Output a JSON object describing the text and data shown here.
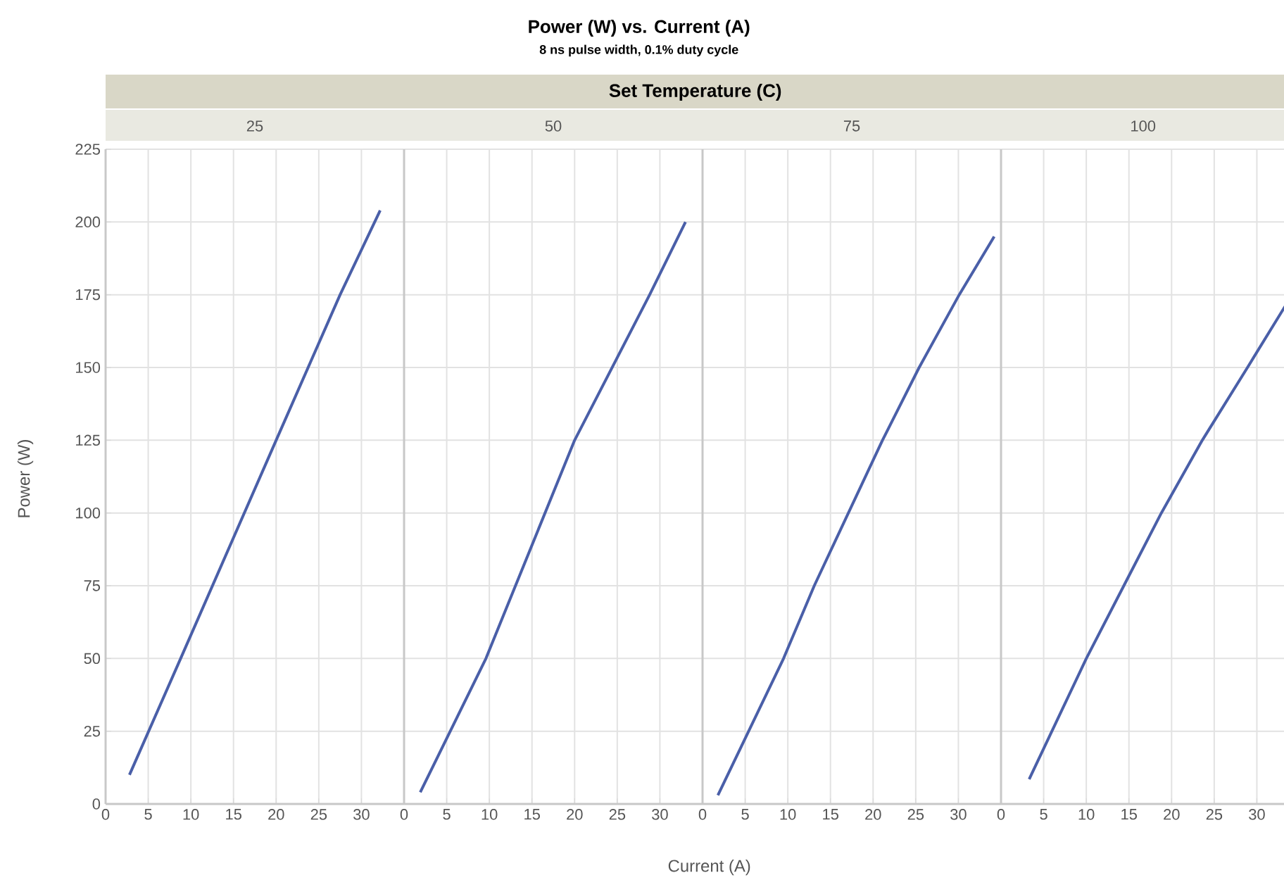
{
  "chart_data": [
    {
      "type": "line",
      "subtitle": "25",
      "ylabel": "Power (W)",
      "color": "#4a5fa8",
      "x": [
        2.8,
        8.8,
        20.0,
        27.5,
        32.2
      ],
      "values": [
        10,
        50,
        125,
        175,
        204
      ],
      "xlim": [
        0,
        35
      ],
      "ylim": [
        0,
        225
      ],
      "xticks": [
        0,
        5,
        10,
        15,
        20,
        25,
        30
      ],
      "yticks": [
        0,
        25,
        50,
        75,
        100,
        125,
        150,
        175,
        200,
        225
      ],
      "grid": true
    },
    {
      "type": "line",
      "title": "Power (W) vs. Current (A)",
      "annotations": [
        "8 ns pulse width, 0.1% duty cycle",
        "Set Temperature (C)"
      ],
      "subtitle": "50",
      "xlabel": "Current (A)",
      "color": "#4a5fa8",
      "x": [
        1.9,
        9.6,
        20.0,
        28.8,
        33.0
      ],
      "values": [
        4,
        50,
        125,
        175,
        200
      ],
      "xlim": [
        0,
        35
      ],
      "ylim": [
        0,
        225
      ],
      "xticks": [
        0,
        5,
        10,
        15,
        20,
        25,
        30
      ],
      "yticks": [
        0,
        25,
        50,
        75,
        100,
        125,
        150,
        175,
        200,
        225
      ],
      "grid": true,
      "tick_labels": "x"
    },
    {
      "type": "line",
      "subtitle": "75",
      "color": "#4a5fa8",
      "x": [
        1.8,
        9.5,
        13.1,
        21.1,
        25.4,
        30.1,
        34.2
      ],
      "values": [
        3,
        50,
        75,
        125,
        150,
        175,
        195
      ],
      "xlim": [
        0,
        35
      ],
      "ylim": [
        0,
        225
      ],
      "xticks": [
        0,
        5,
        10,
        15,
        20,
        25,
        30
      ],
      "yticks": [
        0,
        25,
        50,
        75,
        100,
        125,
        150,
        175,
        200,
        225
      ],
      "grid": true,
      "tick_labels": "x"
    },
    {
      "type": "line",
      "subtitle": "100",
      "color": "#4a5fa8",
      "x": [
        3.3,
        10.0,
        14.4,
        18.8,
        23.6,
        28.9,
        33.3
      ],
      "values": [
        8.5,
        50,
        75,
        100,
        125,
        150,
        171
      ],
      "xlim": [
        0,
        33.3
      ],
      "ylim": [
        0,
        225
      ],
      "xticks": [
        0,
        5,
        10,
        15,
        20,
        25,
        30
      ],
      "yticks": [
        0,
        25,
        50,
        75,
        100,
        125,
        150,
        175,
        200,
        225
      ],
      "grid": true,
      "tick_labels": "x"
    }
  ]
}
